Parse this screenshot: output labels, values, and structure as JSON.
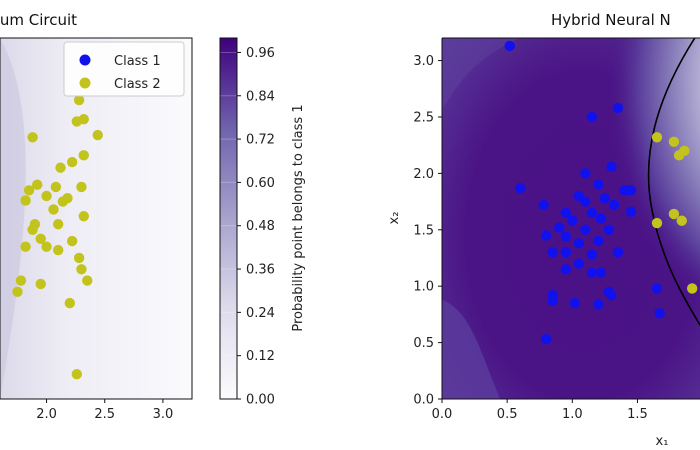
{
  "colors": {
    "class1": "#1111ee",
    "class2": "#c3c31e",
    "dark": "#3f007d",
    "light": "#fcfbfd",
    "boundary": "#000000"
  },
  "chart_data": [
    {
      "type": "scatter",
      "title": "tum Circuit",
      "xlabel": "",
      "ylabel": "",
      "xlim": [
        1.6,
        3.25
      ],
      "ylim": [
        0.0,
        3.2
      ],
      "x_ticks": [
        "2.0",
        "2.5",
        "3.0"
      ],
      "background": "probability contour (mostly low, Class 2 region)",
      "legend": {
        "position": "top-right",
        "entries": [
          "Class 1",
          "Class 2"
        ]
      },
      "series": [
        {
          "name": "Class 1",
          "points": []
        },
        {
          "name": "Class 2",
          "points": [
            [
              1.88,
              2.32
            ],
            [
              2.12,
              2.05
            ],
            [
              2.28,
              2.65
            ],
            [
              2.32,
              2.16
            ],
            [
              2.44,
              2.34
            ],
            [
              2.22,
              2.1
            ],
            [
              1.92,
              1.9
            ],
            [
              2.0,
              1.8
            ],
            [
              1.85,
              1.85
            ],
            [
              2.08,
              1.88
            ],
            [
              2.18,
              1.78
            ],
            [
              2.32,
              1.62
            ],
            [
              2.14,
              1.75
            ],
            [
              1.82,
              1.76
            ],
            [
              2.06,
              1.68
            ],
            [
              2.3,
              1.88
            ],
            [
              2.1,
              1.55
            ],
            [
              1.88,
              1.5
            ],
            [
              1.95,
              1.42
            ],
            [
              2.22,
              1.4
            ],
            [
              2.0,
              1.35
            ],
            [
              2.1,
              1.32
            ],
            [
              2.28,
              1.25
            ],
            [
              2.3,
              1.15
            ],
            [
              1.82,
              1.35
            ],
            [
              1.95,
              1.02
            ],
            [
              2.35,
              1.05
            ],
            [
              2.2,
              0.85
            ],
            [
              2.26,
              0.22
            ],
            [
              1.75,
              0.95
            ],
            [
              2.32,
              2.48
            ],
            [
              2.26,
              2.46
            ],
            [
              1.78,
              1.05
            ],
            [
              1.9,
              1.55
            ]
          ]
        }
      ]
    },
    {
      "type": "heatmap",
      "title": "",
      "colorbar_label": "Probability point belongs to class 1",
      "ticks": [
        "0.00",
        "0.12",
        "0.24",
        "0.36",
        "0.48",
        "0.60",
        "0.72",
        "0.84",
        "0.96"
      ],
      "range": [
        0.0,
        1.0
      ]
    },
    {
      "type": "scatter",
      "title": "Hybrid Neural N",
      "xlabel": "x₁",
      "ylabel": "x₂",
      "xlim": [
        0.0,
        1.98
      ],
      "ylim": [
        0.0,
        3.2
      ],
      "x_ticks": [
        "0.0",
        "0.5",
        "1.0",
        "1.5"
      ],
      "y_ticks": [
        "0.0",
        "0.5",
        "1.0",
        "1.5",
        "2.0",
        "2.5",
        "3.0"
      ],
      "background": "probability contour (high near Class 1 region) with black decision boundary arc",
      "series": [
        {
          "name": "Class 1",
          "points": [
            [
              0.52,
              3.13
            ],
            [
              1.35,
              2.58
            ],
            [
              1.15,
              2.5
            ],
            [
              0.6,
              1.87
            ],
            [
              0.78,
              1.72
            ],
            [
              1.1,
              2.0
            ],
            [
              1.3,
              2.06
            ],
            [
              1.4,
              1.85
            ],
            [
              1.2,
              1.9
            ],
            [
              1.05,
              1.8
            ],
            [
              1.25,
              1.78
            ],
            [
              0.95,
              1.65
            ],
            [
              1.15,
              1.65
            ],
            [
              1.32,
              1.72
            ],
            [
              1.45,
              1.85
            ],
            [
              1.45,
              1.66
            ],
            [
              0.8,
              1.45
            ],
            [
              0.9,
              1.52
            ],
            [
              1.0,
              1.58
            ],
            [
              1.1,
              1.5
            ],
            [
              1.2,
              1.4
            ],
            [
              1.28,
              1.5
            ],
            [
              0.95,
              1.44
            ],
            [
              1.05,
              1.38
            ],
            [
              1.15,
              1.28
            ],
            [
              1.35,
              1.3
            ],
            [
              0.85,
              1.3
            ],
            [
              0.95,
              1.3
            ],
            [
              1.22,
              1.12
            ],
            [
              1.05,
              1.2
            ],
            [
              1.3,
              0.92
            ],
            [
              1.2,
              0.84
            ],
            [
              1.02,
              0.85
            ],
            [
              0.85,
              0.92
            ],
            [
              0.85,
              0.87
            ],
            [
              1.28,
              0.95
            ],
            [
              0.95,
              1.15
            ],
            [
              0.8,
              0.53
            ],
            [
              1.65,
              0.98
            ],
            [
              1.67,
              0.76
            ],
            [
              1.15,
              1.12
            ],
            [
              1.1,
              1.75
            ],
            [
              1.22,
              1.6
            ]
          ]
        },
        {
          "name": "Class 2",
          "points": [
            [
              1.78,
              2.28
            ],
            [
              1.86,
              2.2
            ],
            [
              1.82,
              2.16
            ],
            [
              1.65,
              2.32
            ],
            [
              1.78,
              1.64
            ],
            [
              1.84,
              1.58
            ],
            [
              1.65,
              1.56
            ],
            [
              1.92,
              0.98
            ]
          ]
        }
      ]
    }
  ]
}
